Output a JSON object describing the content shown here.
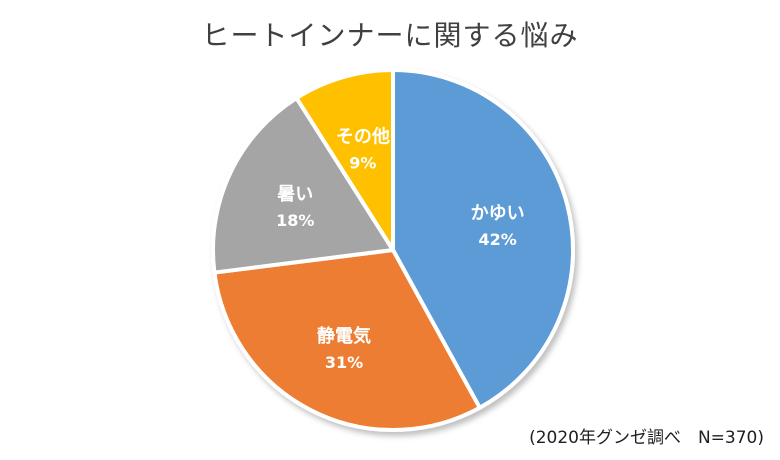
{
  "chart_data": {
    "type": "pie",
    "title": "ヒートインナーに関する悩み",
    "slices": [
      {
        "label": "かゆい",
        "value": 42,
        "display": "42%",
        "color": "#5b9bd5"
      },
      {
        "label": "静電気",
        "value": 31,
        "display": "31%",
        "color": "#ed7d31"
      },
      {
        "label": "暑い",
        "value": 18,
        "display": "18%",
        "color": "#a5a5a5"
      },
      {
        "label": "その他",
        "value": 9,
        "display": "9%",
        "color": "#ffc000"
      }
    ],
    "start": "12 o'clock",
    "direction": "clockwise",
    "legend": "none",
    "note": "(2020年グンゼ調べ　N=370)"
  }
}
